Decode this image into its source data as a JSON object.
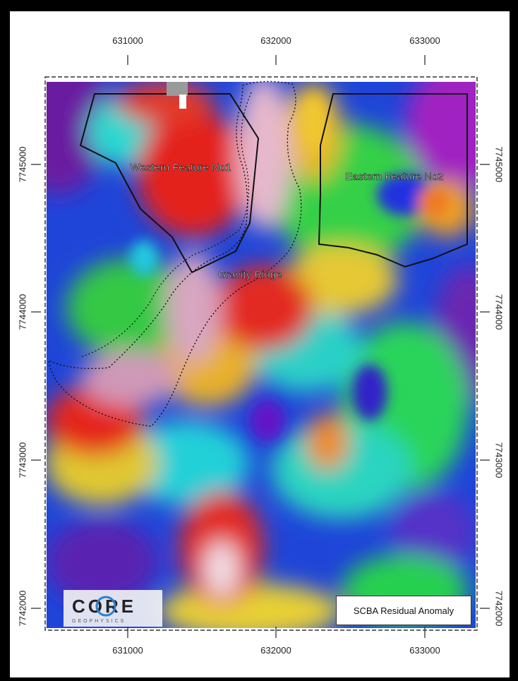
{
  "map": {
    "x_ticks": [
      "631000",
      "632000",
      "633000"
    ],
    "y_ticks": [
      "7745000",
      "7744000",
      "7743000",
      "7742000"
    ],
    "labels": {
      "western": "Western Feature No1",
      "eastern": "Eastern Feature No2",
      "ridge": "Gravity Ridge"
    },
    "legend": "SCBA Residual Anomaly",
    "logo_text": "CORE",
    "logo_subtext": "GEOPHYSICS",
    "colors": {
      "purple": "#7a1fa8",
      "blue": "#1b2fe0",
      "cyan": "#27d6e0",
      "green": "#2fd24a",
      "yellow": "#e6e33a",
      "orange": "#f08a1e",
      "red": "#e22a22",
      "magenta_white": "#e8c8d8"
    }
  }
}
